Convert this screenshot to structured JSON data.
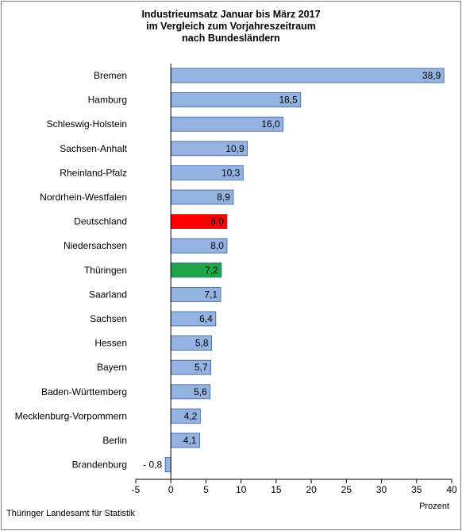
{
  "chart_data": {
    "type": "bar",
    "orientation": "horizontal",
    "title_lines": [
      "Industrieumsatz Januar bis März 2017",
      "im Vergleich zum Vorjahreszeitraum",
      "nach Bundesländern"
    ],
    "xlabel": "Prozent",
    "xlim": [
      -5,
      40
    ],
    "xticks": [
      -5,
      0,
      5,
      10,
      15,
      20,
      25,
      30,
      35,
      40
    ],
    "grid": false,
    "legend": "none",
    "categories": [
      "Bremen",
      "Hamburg",
      "Schleswig-Holstein",
      "Sachsen-Anhalt",
      "Rheinland-Pfalz",
      "Nordrhein-Westfalen",
      "Deutschland",
      "Niedersachsen",
      "Thüringen",
      "Saarland",
      "Sachsen",
      "Hessen",
      "Bayern",
      "Baden-Württemberg",
      "Mecklenburg-Vorpommern",
      "Berlin",
      "Brandenburg"
    ],
    "values": [
      38.9,
      18.5,
      16.0,
      10.9,
      10.3,
      8.9,
      8.0,
      8.0,
      7.2,
      7.1,
      6.4,
      5.8,
      5.7,
      5.6,
      4.2,
      4.1,
      -0.8
    ],
    "value_labels": [
      "38,9",
      "18,5",
      "16,0",
      "10,9",
      "10,3",
      "8,9",
      "8,0",
      "8,0",
      "7,2",
      "7,1",
      "6,4",
      "5,8",
      "5,7",
      "5,6",
      "4,2",
      "4,1",
      "- 0,8"
    ],
    "colors": {
      "default": "#95b3e0",
      "Deutschland": "#ff0000",
      "Thüringen": "#1fa64a",
      "bar_stroke": "#3a5f99"
    }
  },
  "footer": {
    "source": "Thüringer Landesamt für Statistik"
  }
}
